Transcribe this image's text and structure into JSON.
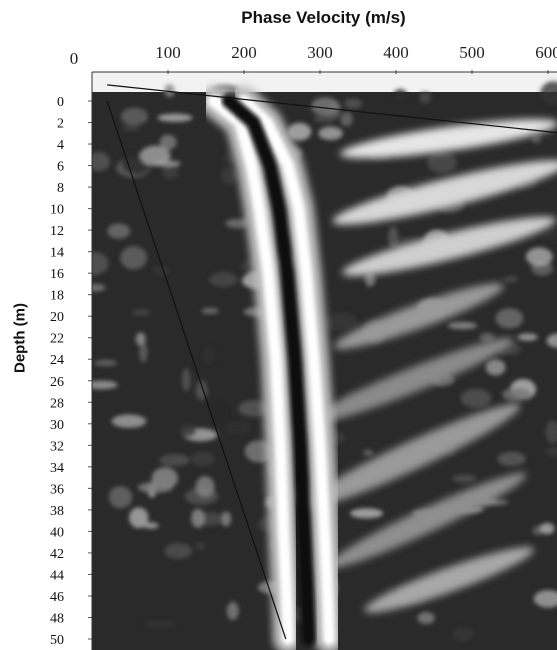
{
  "chart_data": {
    "type": "heatmap",
    "title": "",
    "xlabel": "Phase Velocity (m/s)",
    "ylabel": "Depth (m)",
    "x_ticks": [
      0,
      100,
      200,
      300,
      400,
      500,
      600
    ],
    "y_ticks": [
      0,
      2,
      4,
      6,
      8,
      10,
      12,
      14,
      16,
      18,
      20,
      22,
      24,
      26,
      28,
      30,
      32,
      34,
      36,
      38,
      40,
      42,
      44,
      46,
      48,
      50
    ],
    "xlim": [
      0,
      620
    ],
    "ylim": [
      -1.5,
      50
    ],
    "colormap": "grayscale",
    "colors": {
      "dark": "#2a2a2a",
      "light": "#ffffff",
      "ridge": "#0a0a0a"
    },
    "features": [
      {
        "kind": "dispersion-ridge",
        "depth": [
          0,
          2,
          6,
          10,
          16,
          24,
          32,
          40,
          46,
          50
        ],
        "velocity": [
          160,
          195,
          210,
          220,
          232,
          242,
          248,
          252,
          256,
          258
        ]
      },
      {
        "kind": "dispersion-ridge",
        "depth": [
          0,
          2,
          6,
          10,
          16,
          24,
          32,
          40,
          46,
          50
        ],
        "velocity": [
          200,
          230,
          258,
          272,
          282,
          292,
          300,
          306,
          310,
          312
        ]
      },
      {
        "kind": "reference-line",
        "depth": [
          0,
          50
        ],
        "velocity": [
          20,
          255
        ]
      },
      {
        "kind": "reference-line",
        "depth": [
          -1.5,
          3
        ],
        "velocity": [
          20,
          620
        ]
      }
    ]
  }
}
